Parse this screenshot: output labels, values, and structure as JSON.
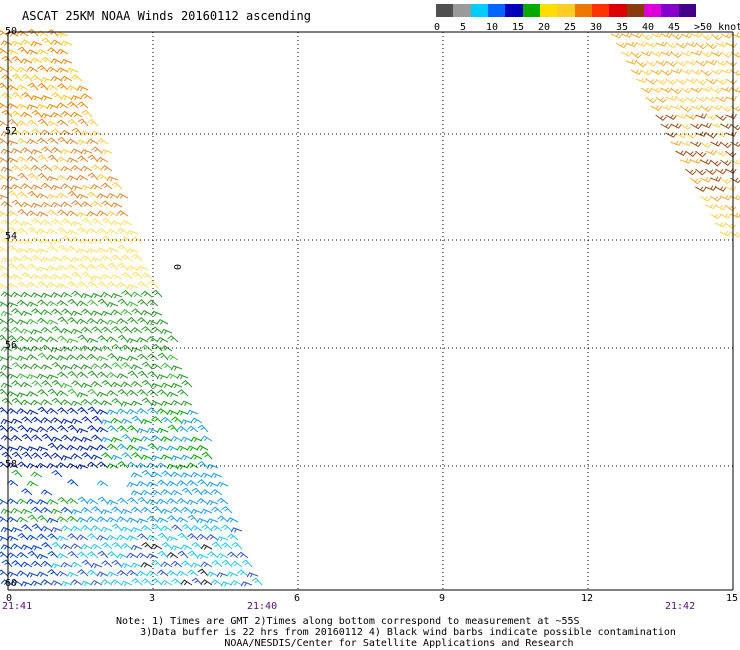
{
  "title": "ASCAT 25KM NOAA Winds 20160112 ascending",
  "legend": {
    "colors": [
      "#505050",
      "#9a9a9a",
      "#00ccff",
      "#0066ff",
      "#0000bb",
      "#00aa00",
      "#ffdd00",
      "#ffcc22",
      "#ee7700",
      "#ff3300",
      "#dd0000",
      "#8b3a10",
      "#dd00dd",
      "#8800cc",
      "#440088"
    ],
    "labels": [
      "0",
      "5",
      "10",
      "15",
      "20",
      "25",
      "30",
      "35",
      "40",
      "45",
      ">50 knots"
    ]
  },
  "axes": {
    "lat_labels": [
      "50",
      "52",
      "54",
      "56",
      "58",
      "60"
    ],
    "lon_labels": [
      "0",
      "3",
      "6",
      "9",
      "12",
      "15"
    ],
    "time_labels": [
      "21:41",
      "21:40",
      "21:42"
    ],
    "lat_range": [
      50,
      60
    ],
    "lon_range": [
      0,
      15
    ]
  },
  "annotation": "0",
  "note": {
    "line1": "Note: 1) Times are GMT 2)Times along bottom correspond to measurement at ~55S",
    "line2": "3)Data buffer is 22 hrs from 20160112 4) Black wind barbs indicate possible contamination",
    "line3": "NOAA/NESDIS/Center for Satellite Applications and Research"
  }
}
